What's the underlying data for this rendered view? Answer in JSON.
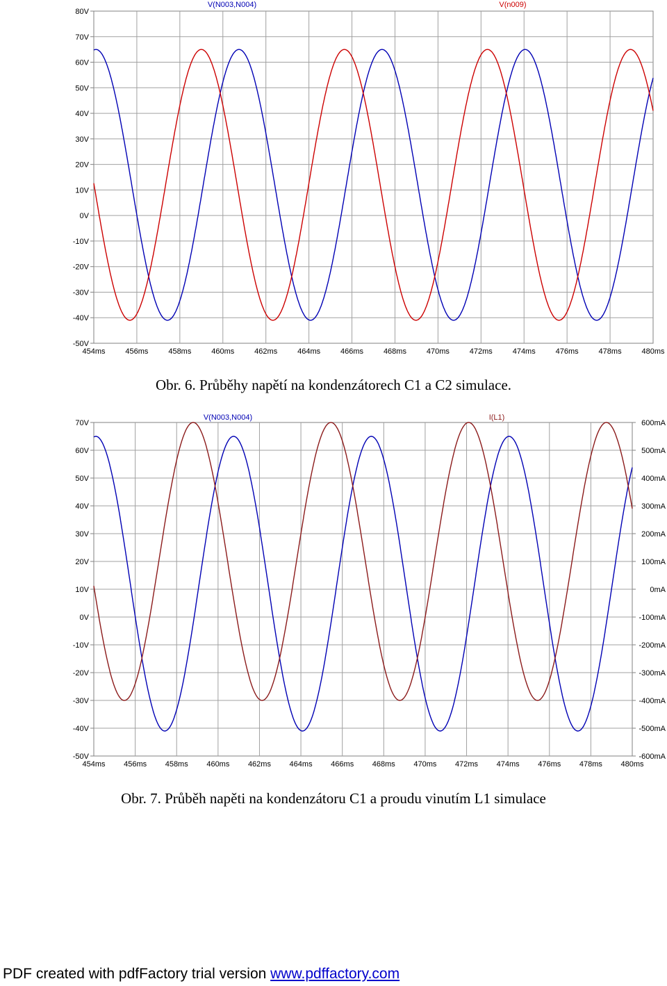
{
  "chart_data": [
    {
      "type": "line",
      "title": "",
      "xlabel": "",
      "ylabel": "",
      "x_ticks": [
        "454ms",
        "456ms",
        "458ms",
        "460ms",
        "462ms",
        "464ms",
        "466ms",
        "468ms",
        "470ms",
        "472ms",
        "474ms",
        "476ms",
        "478ms",
        "480ms"
      ],
      "y_ticks": [
        "80V",
        "70V",
        "60V",
        "50V",
        "40V",
        "30V",
        "20V",
        "10V",
        "0V",
        "-10V",
        "-20V",
        "-30V",
        "-40V",
        "-50V"
      ],
      "xlim": [
        454,
        480
      ],
      "ylim": [
        -50,
        80
      ],
      "x_unit": "ms",
      "grid": true,
      "legend": "top",
      "series": [
        {
          "name": "V(N003,N004)",
          "color": "#0000b4",
          "amplitude": 53,
          "offset": 12,
          "period": 6.65,
          "peak_at": 454.1,
          "x_end": 480
        },
        {
          "name": "V(n009)",
          "color": "#cc0000",
          "amplitude": 53,
          "offset": 12,
          "period": 6.65,
          "peak_at": 459.0,
          "x_end": 480
        }
      ]
    },
    {
      "type": "line",
      "title": "",
      "xlabel": "",
      "ylabel": "",
      "x_ticks": [
        "454ms",
        "456ms",
        "458ms",
        "460ms",
        "462ms",
        "464ms",
        "466ms",
        "468ms",
        "470ms",
        "472ms",
        "474ms",
        "476ms",
        "478ms",
        "480ms"
      ],
      "y_ticks": [
        "70V",
        "60V",
        "50V",
        "40V",
        "30V",
        "20V",
        "10V",
        "0V",
        "-10V",
        "-20V",
        "-30V",
        "-40V",
        "-50V"
      ],
      "y2_ticks": [
        "600mA",
        "500mA",
        "400mA",
        "300mA",
        "200mA",
        "100mA",
        "0mA",
        "-100mA",
        "-200mA",
        "-300mA",
        "-400mA",
        "-500mA",
        "-600mA"
      ],
      "xlim": [
        454,
        480
      ],
      "ylim": [
        -50,
        70
      ],
      "y2lim": [
        -600,
        600
      ],
      "x_unit": "ms",
      "grid": true,
      "legend": "top",
      "series": [
        {
          "name": "V(N003,N004)",
          "color": "#0000b4",
          "axis": "left",
          "amplitude": 53,
          "offset": 12,
          "period": 6.65,
          "peak_at": 454.1,
          "x_end": 480
        },
        {
          "name": "I(L1)",
          "color": "#8b1a1a",
          "axis": "right",
          "amplitude": 500,
          "offset": 100,
          "period": 6.65,
          "peak_at": 458.8,
          "x_end": 480
        }
      ]
    }
  ],
  "captions": {
    "fig6": "Obr. 6. Průběhy napětí na kondenzátorech C1 a C2 simulace.",
    "fig7": "Obr. 7. Průběh napěti na kondenzátoru C1 a proudu vinutím L1 simulace"
  },
  "footer": {
    "text": "PDF created with pdfFactory trial version ",
    "link": "www.pdffactory.com"
  }
}
